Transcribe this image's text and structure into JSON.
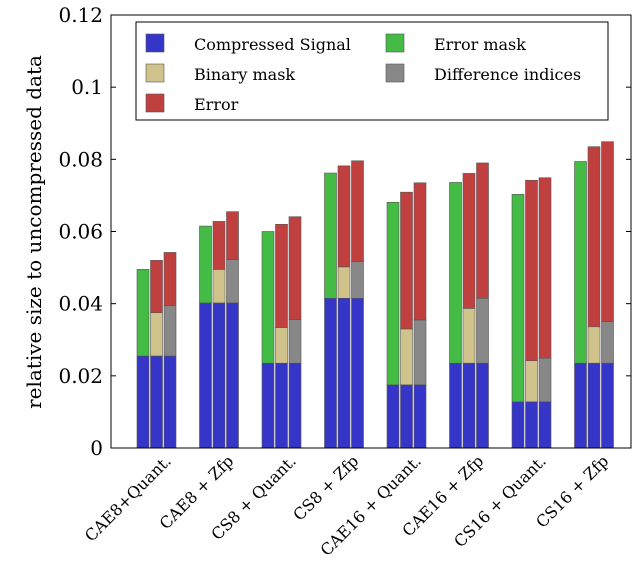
{
  "chart_data": {
    "type": "bar",
    "stacked": true,
    "ylabel": "relative size to uncompressed data",
    "xlabel": "",
    "ylim": [
      0,
      0.12
    ],
    "yticks": [
      0,
      0.02,
      0.04,
      0.06,
      0.08,
      0.1,
      0.12
    ],
    "ytick_labels": [
      "0",
      "0.02",
      "0.04",
      "0.06",
      "0.08",
      "0.1",
      "0.12"
    ],
    "grid": false,
    "legend_position": "top",
    "categories": [
      "CAE8+Quant.",
      "CAE8 + Zfp",
      "CS8 + Quant.",
      "CS8 + Zfp",
      "CAE16 + Quant.",
      "CAE16 + Zfp",
      "CS16 + Quant.",
      "CS16 + Zfp"
    ],
    "series": [
      {
        "name": "Compressed Signal",
        "color": "#3535c8"
      },
      {
        "name": "Binary mask",
        "color": "#cfc28a"
      },
      {
        "name": "Error",
        "color": "#c04040"
      },
      {
        "name": "Error mask",
        "color": "#44bb44"
      },
      {
        "name": "Difference indices",
        "color": "#888888"
      }
    ],
    "groups": [
      {
        "bars": [
          [
            {
              "series": 0,
              "value": 0.0255
            },
            {
              "series": 3,
              "value": 0.024
            }
          ],
          [
            {
              "series": 0,
              "value": 0.0255
            },
            {
              "series": 1,
              "value": 0.012
            },
            {
              "series": 2,
              "value": 0.0145
            }
          ],
          [
            {
              "series": 0,
              "value": 0.0255
            },
            {
              "series": 4,
              "value": 0.014
            },
            {
              "series": 2,
              "value": 0.0147
            }
          ]
        ]
      },
      {
        "bars": [
          [
            {
              "series": 0,
              "value": 0.0402
            },
            {
              "series": 3,
              "value": 0.0213
            }
          ],
          [
            {
              "series": 0,
              "value": 0.0402
            },
            {
              "series": 1,
              "value": 0.0093
            },
            {
              "series": 2,
              "value": 0.0133
            }
          ],
          [
            {
              "series": 0,
              "value": 0.0402
            },
            {
              "series": 4,
              "value": 0.012
            },
            {
              "series": 2,
              "value": 0.0133
            }
          ]
        ]
      },
      {
        "bars": [
          [
            {
              "series": 0,
              "value": 0.0235
            },
            {
              "series": 3,
              "value": 0.0365
            }
          ],
          [
            {
              "series": 0,
              "value": 0.0235
            },
            {
              "series": 1,
              "value": 0.0099
            },
            {
              "series": 2,
              "value": 0.0286
            }
          ],
          [
            {
              "series": 0,
              "value": 0.0235
            },
            {
              "series": 4,
              "value": 0.0121
            },
            {
              "series": 2,
              "value": 0.0285
            }
          ]
        ]
      },
      {
        "bars": [
          [
            {
              "series": 0,
              "value": 0.0415
            },
            {
              "series": 3,
              "value": 0.0347
            }
          ],
          [
            {
              "series": 0,
              "value": 0.0415
            },
            {
              "series": 1,
              "value": 0.0087
            },
            {
              "series": 2,
              "value": 0.028
            }
          ],
          [
            {
              "series": 0,
              "value": 0.0415
            },
            {
              "series": 4,
              "value": 0.0102
            },
            {
              "series": 2,
              "value": 0.0279
            }
          ]
        ]
      },
      {
        "bars": [
          [
            {
              "series": 0,
              "value": 0.0175
            },
            {
              "series": 3,
              "value": 0.0506
            }
          ],
          [
            {
              "series": 0,
              "value": 0.0175
            },
            {
              "series": 1,
              "value": 0.0155
            },
            {
              "series": 2,
              "value": 0.0379
            }
          ],
          [
            {
              "series": 0,
              "value": 0.0175
            },
            {
              "series": 4,
              "value": 0.018
            },
            {
              "series": 2,
              "value": 0.038
            }
          ]
        ]
      },
      {
        "bars": [
          [
            {
              "series": 0,
              "value": 0.0235
            },
            {
              "series": 3,
              "value": 0.0501
            }
          ],
          [
            {
              "series": 0,
              "value": 0.0235
            },
            {
              "series": 1,
              "value": 0.0152
            },
            {
              "series": 2,
              "value": 0.0374
            }
          ],
          [
            {
              "series": 0,
              "value": 0.0235
            },
            {
              "series": 4,
              "value": 0.018
            },
            {
              "series": 2,
              "value": 0.0375
            }
          ]
        ]
      },
      {
        "bars": [
          [
            {
              "series": 0,
              "value": 0.0128
            },
            {
              "series": 3,
              "value": 0.0575
            }
          ],
          [
            {
              "series": 0,
              "value": 0.0128
            },
            {
              "series": 1,
              "value": 0.0114
            },
            {
              "series": 2,
              "value": 0.05
            }
          ],
          [
            {
              "series": 0,
              "value": 0.0128
            },
            {
              "series": 4,
              "value": 0.0121
            },
            {
              "series": 2,
              "value": 0.05
            }
          ]
        ]
      },
      {
        "bars": [
          [
            {
              "series": 0,
              "value": 0.0235
            },
            {
              "series": 3,
              "value": 0.0559
            }
          ],
          [
            {
              "series": 0,
              "value": 0.0235
            },
            {
              "series": 1,
              "value": 0.0101
            },
            {
              "series": 2,
              "value": 0.0499
            }
          ],
          [
            {
              "series": 0,
              "value": 0.0235
            },
            {
              "series": 4,
              "value": 0.0115
            },
            {
              "series": 2,
              "value": 0.0499
            }
          ]
        ]
      }
    ]
  }
}
